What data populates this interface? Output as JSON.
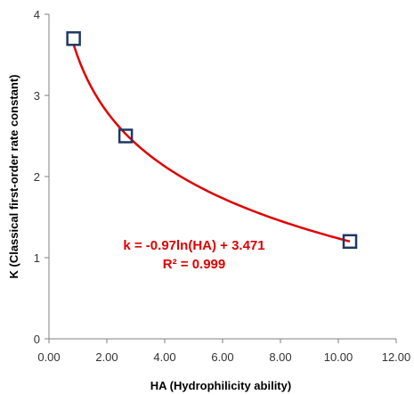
{
  "chart_data": {
    "type": "scatter",
    "title": "",
    "xlabel": "HA (Hydrophilicity ability)",
    "ylabel": "K (Classical first-order rate constant)",
    "xlim": [
      0,
      12
    ],
    "ylim": [
      0,
      4
    ],
    "x_ticks": [
      "0.00",
      "2.00",
      "4.00",
      "6.00",
      "8.00",
      "10.00",
      "12.00"
    ],
    "y_ticks": [
      "0",
      "1",
      "2",
      "3",
      "4"
    ],
    "grid": false,
    "legend": "none",
    "series": [
      {
        "marker": "open-square",
        "color": "#1f3864",
        "points": [
          {
            "x": 0.85,
            "y": 3.7
          },
          {
            "x": 2.65,
            "y": 2.5
          },
          {
            "x": 10.4,
            "y": 1.2
          }
        ]
      }
    ],
    "trendline": {
      "type": "logarithmic",
      "a": -0.97,
      "b": 3.471,
      "x_range": [
        0.85,
        10.4
      ],
      "color": "#e00000",
      "equation": "k = -0.97ln(HA) + 3.471",
      "r_squared": "R² = 0.999"
    }
  }
}
